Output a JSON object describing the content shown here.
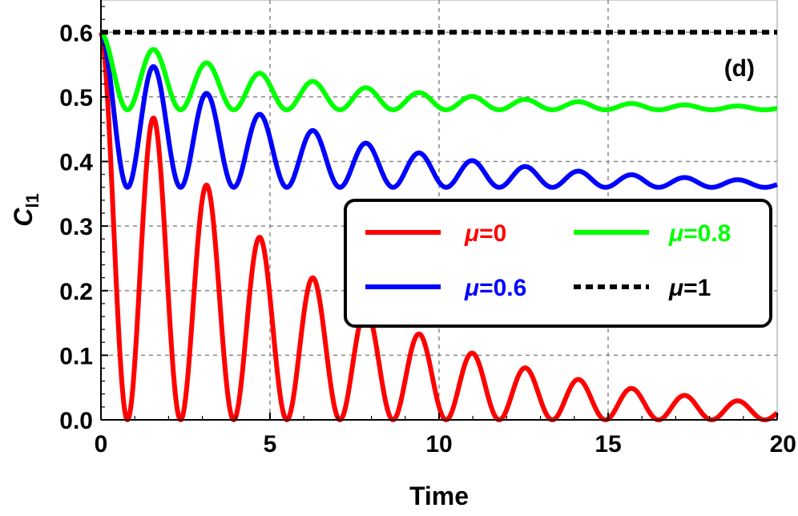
{
  "chart_data": {
    "type": "line",
    "title": "",
    "panel_label": "(d)",
    "xlabel": "Time",
    "ylabel": {
      "main": "C",
      "sub": "l1"
    },
    "xlim": [
      0,
      20
    ],
    "ylim": [
      0,
      0.65
    ],
    "x_ticks": [
      0,
      5,
      10,
      15,
      20
    ],
    "x_tick_labels": [
      "0",
      "5",
      "10",
      "15",
      "20"
    ],
    "y_ticks": [
      0.0,
      0.1,
      0.2,
      0.3,
      0.4,
      0.5,
      0.6
    ],
    "y_tick_labels": [
      "0.0",
      "0.1",
      "0.2",
      "0.3",
      "0.4",
      "0.5",
      "0.6"
    ],
    "grid": true,
    "legend_position": "center-right",
    "model": "C(t) = C0 * (mu + (1 - mu) * cos^2(omega t) * exp(-gamma t))",
    "model_params": {
      "C0": 0.6,
      "omega": 2.0,
      "gamma": 0.16,
      "x_step": 0.02
    },
    "series": [
      {
        "name": "μ=0",
        "symbol": "μ",
        "suffix": "=0",
        "mu": 0.0,
        "color": "#ff0000",
        "style": "solid",
        "legend_text_color": "#ff0000"
      },
      {
        "name": "μ=0.8",
        "symbol": "μ",
        "suffix": "=0.8",
        "mu": 0.8,
        "color": "#00ff00",
        "style": "solid",
        "legend_text_color": "#00ff00"
      },
      {
        "name": "μ=0.6",
        "symbol": "μ",
        "suffix": "=0.6",
        "mu": 0.6,
        "color": "#0000ff",
        "style": "solid",
        "legend_text_color": "#0000ff"
      },
      {
        "name": "μ=1",
        "symbol": "μ",
        "suffix": "=1",
        "mu": 1.0,
        "color": "#000000",
        "style": "dotted",
        "legend_text_color": "#000000"
      }
    ]
  }
}
